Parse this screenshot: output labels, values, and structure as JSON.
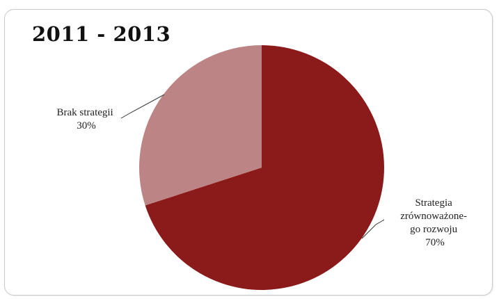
{
  "chart_data": {
    "type": "pie",
    "title": "2011 - 2013",
    "slices": [
      {
        "name": "Strategia zrównoważonego rozwoju",
        "value": 70,
        "color": "#8b1a1a",
        "label_lines": [
          "Strategia",
          "zrównoważone-",
          "go rozwoju",
          "70%"
        ]
      },
      {
        "name": "Brak strategii",
        "value": 30,
        "color": "#bc8484",
        "label_lines": [
          "Brak strategii",
          "30%"
        ]
      }
    ]
  }
}
